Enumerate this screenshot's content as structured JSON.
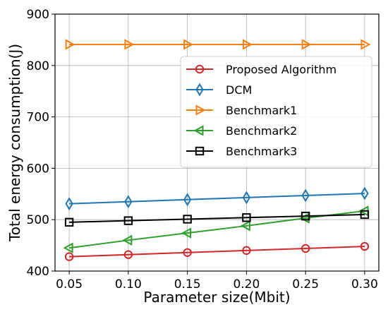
{
  "chart_data": {
    "type": "line",
    "title": "",
    "xlabel": "Parameter size(Mbit)",
    "ylabel": "Total energy consumption(J)",
    "x": [
      0.05,
      0.1,
      0.15,
      0.2,
      0.25,
      0.3
    ],
    "x_tick_labels": [
      "0.05",
      "0.10",
      "0.15",
      "0.20",
      "0.25",
      "0.30"
    ],
    "xlim": [
      0.038,
      0.312
    ],
    "ylim": [
      400,
      900
    ],
    "y_ticks": [
      400,
      500,
      600,
      700,
      800,
      900
    ],
    "grid": true,
    "legend_position": "upper-right",
    "series": [
      {
        "name": "Proposed Algorithm",
        "color": "#d62728",
        "marker": "circle",
        "values": [
          428,
          432,
          436,
          440,
          444,
          448
        ]
      },
      {
        "name": "DCM",
        "color": "#1f77b4",
        "marker": "diamond",
        "values": [
          531,
          535,
          539,
          543,
          547,
          551
        ]
      },
      {
        "name": "Benchmark1",
        "color": "#ff7f0e",
        "marker": "triangle-right",
        "values": [
          841,
          841,
          841,
          841,
          841,
          841
        ]
      },
      {
        "name": "Benchmark2",
        "color": "#2ca02c",
        "marker": "triangle-left",
        "values": [
          445,
          460,
          474,
          488,
          503,
          517
        ]
      },
      {
        "name": "Benchmark3",
        "color": "#000000",
        "marker": "square",
        "values": [
          495,
          498,
          501,
          504,
          507,
          510
        ]
      }
    ]
  }
}
